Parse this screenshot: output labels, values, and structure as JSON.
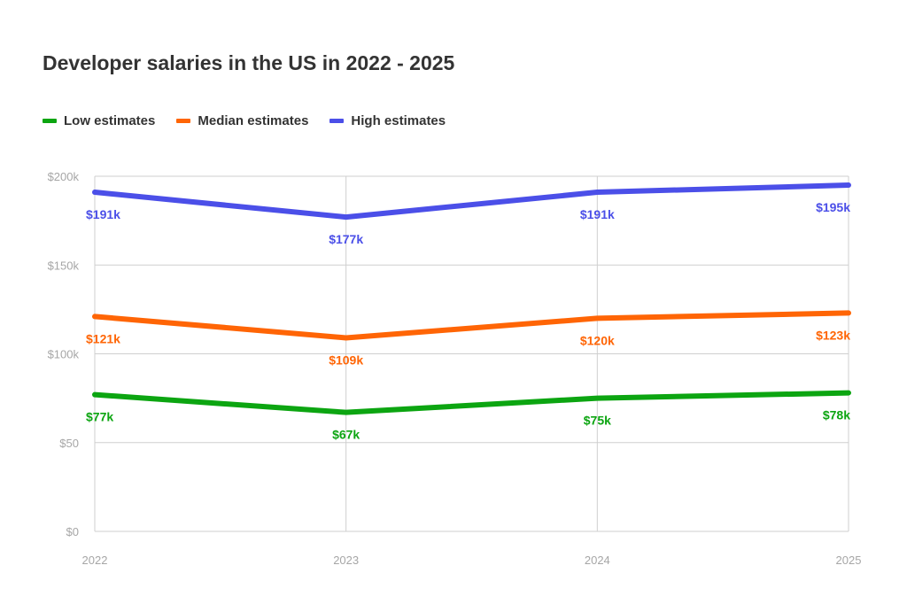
{
  "chart_data": {
    "type": "line",
    "title": "Developer salaries in the US in 2022 - 2025",
    "categories": [
      "2022",
      "2023",
      "2024",
      "2025"
    ],
    "y_ticks": [
      "$0",
      "$50",
      "$100k",
      "$150k",
      "$200k"
    ],
    "y_tick_values": [
      0,
      50,
      100,
      150,
      200
    ],
    "ylim": [
      0,
      200
    ],
    "grid": true,
    "legend_placement": "top-left",
    "series": [
      {
        "name": "Low estimates",
        "values": [
          77,
          67,
          75,
          78
        ],
        "labels": [
          "$77k",
          "$67k",
          "$75k",
          "$78k"
        ],
        "color": "#0ca511"
      },
      {
        "name": "Median estimates",
        "values": [
          121,
          109,
          120,
          123
        ],
        "labels": [
          "$121k",
          "$109k",
          "$120k",
          "$123k"
        ],
        "color": "#ff6505"
      },
      {
        "name": "High estimates",
        "values": [
          191,
          177,
          191,
          195
        ],
        "labels": [
          "$191k",
          "$177k",
          "$191k",
          "$195k"
        ],
        "color": "#4b4fe8"
      }
    ]
  }
}
